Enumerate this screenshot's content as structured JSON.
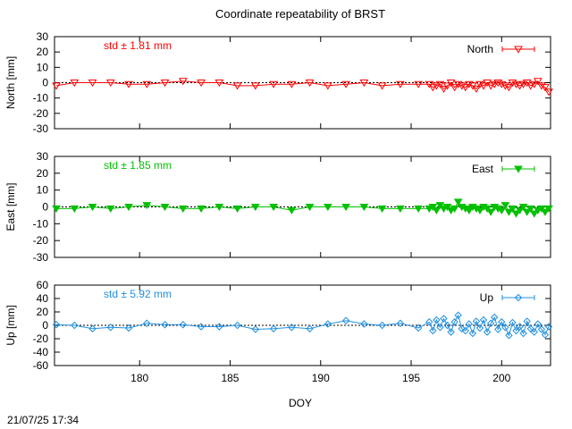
{
  "chart_data": {
    "type": "line",
    "title": "Coordinate repeatability of BRST",
    "xlabel": "DOY",
    "xlim": [
      175.3,
      202.7
    ],
    "xticks": [
      180,
      185,
      190,
      195,
      200
    ],
    "timestamp": "21/07/25 17:34",
    "panels": [
      {
        "name": "North",
        "ylabel": "North [mm]",
        "ylim": [
          -30,
          30
        ],
        "yticks": [
          -30,
          -20,
          -10,
          0,
          10,
          20,
          30
        ],
        "std_label": "std ± 1.81 mm",
        "color": "#ff0000",
        "marker": "triangle-down-open",
        "legend_label": "North",
        "x": [
          175.4,
          176.4,
          177.4,
          178.4,
          179.4,
          180.4,
          181.4,
          182.4,
          183.4,
          184.4,
          185.4,
          186.4,
          187.4,
          188.4,
          189.4,
          190.4,
          191.4,
          192.4,
          193.4,
          194.4,
          195.4,
          196.0,
          196.2,
          196.4,
          196.6,
          196.8,
          197.0,
          197.2,
          197.4,
          197.6,
          197.8,
          198.0,
          198.2,
          198.4,
          198.6,
          198.8,
          199.0,
          199.2,
          199.4,
          199.6,
          199.8,
          200.0,
          200.2,
          200.4,
          200.6,
          200.8,
          201.0,
          201.2,
          201.4,
          201.6,
          201.8,
          202.0,
          202.2,
          202.4,
          202.6
        ],
        "y": [
          -2,
          0,
          0,
          0,
          -1,
          -1,
          0,
          1,
          0,
          0,
          -2,
          -2,
          -1,
          -1,
          0,
          -2,
          -1,
          0,
          -2,
          -1,
          -1,
          -1,
          -3,
          -2,
          -1,
          -4,
          -2,
          0,
          -3,
          -1,
          -2,
          -3,
          -1,
          -2,
          -4,
          -1,
          -2,
          0,
          -2,
          -1,
          0,
          -1,
          -2,
          -3,
          0,
          -1,
          -2,
          -1,
          0,
          -2,
          -1,
          1,
          -2,
          -3,
          -6
        ]
      },
      {
        "name": "East",
        "ylabel": "East [mm]",
        "ylim": [
          -30,
          30
        ],
        "yticks": [
          -30,
          -20,
          -10,
          0,
          10,
          20,
          30
        ],
        "std_label": "std ± 1.85 mm",
        "color": "#00c000",
        "marker": "triangle-down-filled",
        "legend_label": "East",
        "x": [
          175.4,
          176.4,
          177.4,
          178.4,
          179.4,
          180.4,
          181.4,
          182.4,
          183.4,
          184.4,
          185.4,
          186.4,
          187.4,
          188.4,
          189.4,
          190.4,
          191.4,
          192.4,
          193.4,
          194.4,
          195.4,
          196.0,
          196.2,
          196.4,
          196.6,
          196.8,
          197.0,
          197.2,
          197.4,
          197.6,
          197.8,
          198.0,
          198.2,
          198.4,
          198.6,
          198.8,
          199.0,
          199.2,
          199.4,
          199.6,
          199.8,
          200.0,
          200.2,
          200.4,
          200.6,
          200.8,
          201.0,
          201.2,
          201.4,
          201.6,
          201.8,
          202.0,
          202.2,
          202.4,
          202.6
        ],
        "y": [
          -1,
          -1,
          0,
          -1,
          0,
          1,
          0,
          -1,
          -1,
          0,
          -1,
          0,
          0,
          -2,
          0,
          0,
          0,
          0,
          -1,
          -1,
          -1,
          -1,
          0,
          -2,
          1,
          -1,
          0,
          -2,
          -1,
          3,
          0,
          -1,
          -2,
          0,
          -1,
          -2,
          0,
          -1,
          -3,
          0,
          -1,
          -2,
          1,
          -3,
          -1,
          -4,
          -2,
          0,
          -3,
          -1,
          -4,
          -2,
          -1,
          -3,
          -1
        ]
      },
      {
        "name": "Up",
        "ylabel": "Up [mm]",
        "ylim": [
          -60,
          60
        ],
        "yticks": [
          -60,
          -40,
          -20,
          0,
          20,
          40,
          60
        ],
        "std_label": "std ± 5.92 mm",
        "color": "#2090e0",
        "marker": "diamond-open",
        "legend_label": "Up",
        "x": [
          175.4,
          176.4,
          177.4,
          178.4,
          179.4,
          180.4,
          181.4,
          182.4,
          183.4,
          184.4,
          185.4,
          186.4,
          187.4,
          188.4,
          189.4,
          190.4,
          191.4,
          192.4,
          193.4,
          194.4,
          195.4,
          196.0,
          196.2,
          196.4,
          196.6,
          196.8,
          197.0,
          197.2,
          197.4,
          197.6,
          197.8,
          198.0,
          198.2,
          198.4,
          198.6,
          198.8,
          199.0,
          199.2,
          199.4,
          199.6,
          199.8,
          200.0,
          200.2,
          200.4,
          200.6,
          200.8,
          201.0,
          201.2,
          201.4,
          201.6,
          201.8,
          202.0,
          202.2,
          202.4,
          202.6
        ],
        "y": [
          1,
          0,
          -5,
          -3,
          -4,
          3,
          1,
          1,
          -2,
          -2,
          0,
          -6,
          -5,
          -3,
          -5,
          2,
          7,
          2,
          0,
          3,
          -4,
          5,
          -8,
          8,
          -3,
          10,
          0,
          -10,
          5,
          15,
          -5,
          -8,
          2,
          -12,
          6,
          -4,
          8,
          -10,
          3,
          12,
          -6,
          5,
          -3,
          -15,
          4,
          -8,
          -2,
          -12,
          6,
          -5,
          -10,
          2,
          -6,
          -14,
          -2
        ]
      }
    ]
  }
}
